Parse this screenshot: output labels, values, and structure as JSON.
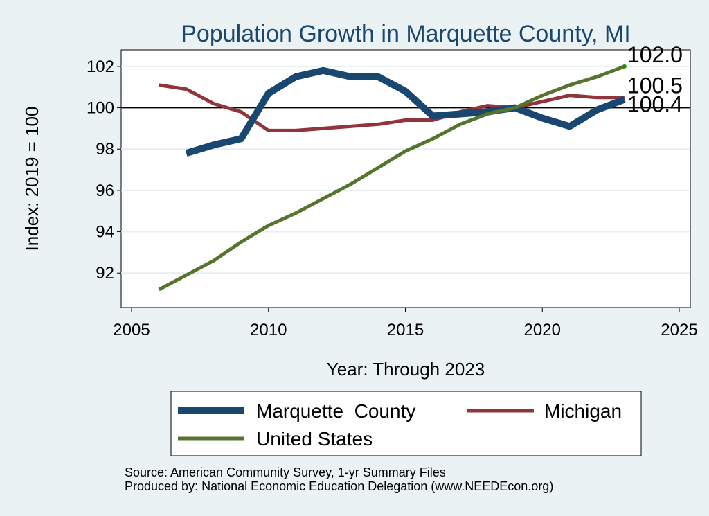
{
  "chart_data": {
    "type": "line",
    "title": "Population Growth in Marquette County, MI",
    "xlabel": "Year: Through 2023",
    "ylabel": "Index: 2019 = 100",
    "xlim": [
      2005,
      2025
    ],
    "ylim": [
      90.7,
      102.5
    ],
    "x_ticks": [
      2005,
      2010,
      2015,
      2020,
      2025
    ],
    "y_ticks": [
      92,
      94,
      96,
      98,
      100,
      102
    ],
    "reference_line": 100,
    "grid": true,
    "legend_position": "bottom",
    "series": [
      {
        "name": "Marquette  County",
        "color": "#1a476f",
        "x": [
          2007,
          2008,
          2009,
          2010,
          2011,
          2012,
          2013,
          2014,
          2015,
          2016,
          2017,
          2018,
          2019,
          2020,
          2021,
          2022,
          2023
        ],
        "values": [
          97.8,
          98.2,
          98.5,
          100.7,
          101.5,
          101.8,
          101.5,
          101.5,
          100.8,
          99.6,
          99.7,
          99.8,
          100.0,
          99.5,
          99.1,
          99.9,
          100.4
        ],
        "end_label": "100.4"
      },
      {
        "name": "Michigan",
        "color": "#90353b",
        "x": [
          2006,
          2007,
          2008,
          2009,
          2010,
          2011,
          2012,
          2013,
          2014,
          2015,
          2016,
          2017,
          2018,
          2019,
          2020,
          2021,
          2022,
          2023
        ],
        "values": [
          101.1,
          100.9,
          100.2,
          99.8,
          98.9,
          98.9,
          99.0,
          99.1,
          99.2,
          99.4,
          99.4,
          99.8,
          100.1,
          100.0,
          100.3,
          100.6,
          100.5,
          100.5
        ],
        "end_label": "100.5"
      },
      {
        "name": "United States",
        "color": "#55752f",
        "x": [
          2006,
          2007,
          2008,
          2009,
          2010,
          2011,
          2012,
          2013,
          2014,
          2015,
          2016,
          2017,
          2018,
          2019,
          2020,
          2021,
          2022,
          2023
        ],
        "values": [
          91.2,
          91.9,
          92.6,
          93.5,
          94.3,
          94.9,
          95.6,
          96.3,
          97.1,
          97.9,
          98.5,
          99.2,
          99.7,
          100.0,
          100.6,
          101.1,
          101.5,
          102.0
        ],
        "end_label": "102.0"
      }
    ],
    "source_note": "Source: American Community Survey, 1-yr Summary Files",
    "producer_note": "Produced by: National Economic Education Delegation (www.NEEDEcon.org)"
  }
}
